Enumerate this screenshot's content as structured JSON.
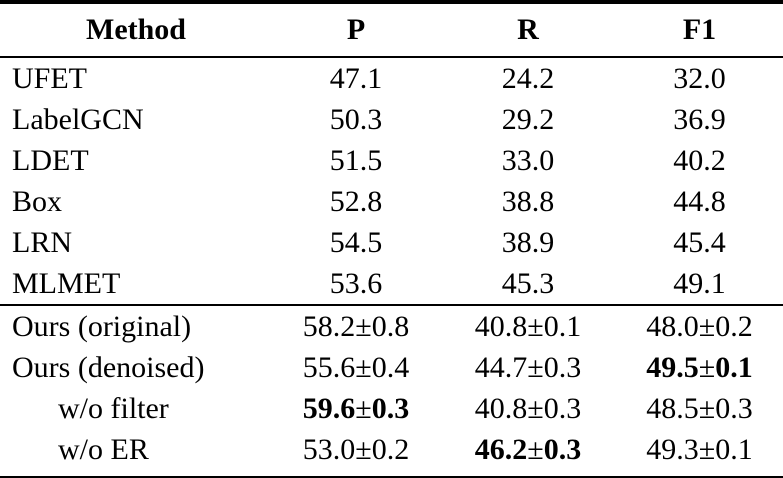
{
  "table": {
    "columns": [
      "Method",
      "P",
      "R",
      "F1"
    ],
    "sections": [
      {
        "name": "baselines",
        "rows": [
          {
            "cells": [
              "UFET",
              "47.1",
              "24.2",
              "32.0"
            ],
            "bold": [
              false,
              false,
              false,
              false
            ],
            "indent": false
          },
          {
            "cells": [
              "LabelGCN",
              "50.3",
              "29.2",
              "36.9"
            ],
            "bold": [
              false,
              false,
              false,
              false
            ],
            "indent": false
          },
          {
            "cells": [
              "LDET",
              "51.5",
              "33.0",
              "40.2"
            ],
            "bold": [
              false,
              false,
              false,
              false
            ],
            "indent": false
          },
          {
            "cells": [
              "Box",
              "52.8",
              "38.8",
              "44.8"
            ],
            "bold": [
              false,
              false,
              false,
              false
            ],
            "indent": false
          },
          {
            "cells": [
              "LRN",
              "54.5",
              "38.9",
              "45.4"
            ],
            "bold": [
              false,
              false,
              false,
              false
            ],
            "indent": false
          },
          {
            "cells": [
              "MLMET",
              "53.6",
              "45.3",
              "49.1"
            ],
            "bold": [
              false,
              false,
              false,
              false
            ],
            "indent": false
          }
        ]
      },
      {
        "name": "ours",
        "rows": [
          {
            "cells": [
              "Ours (original)",
              "58.2±0.8",
              "40.8±0.1",
              "48.0±0.2"
            ],
            "bold": [
              false,
              false,
              false,
              false
            ],
            "indent": false
          },
          {
            "cells": [
              "Ours (denoised)",
              "55.6±0.4",
              "44.7±0.3",
              "49.5±0.1"
            ],
            "bold": [
              false,
              false,
              false,
              true
            ],
            "indent": false
          },
          {
            "cells": [
              "w/o filter",
              "59.6±0.3",
              "40.8±0.3",
              "48.5±0.3"
            ],
            "bold": [
              false,
              true,
              false,
              false
            ],
            "indent": true
          },
          {
            "cells": [
              "w/o ER",
              "53.0±0.2",
              "46.2±0.3",
              "49.3±0.1"
            ],
            "bold": [
              false,
              false,
              true,
              false
            ],
            "indent": true
          }
        ]
      }
    ],
    "text_color": "#000000",
    "background_color": "#ffffff"
  }
}
